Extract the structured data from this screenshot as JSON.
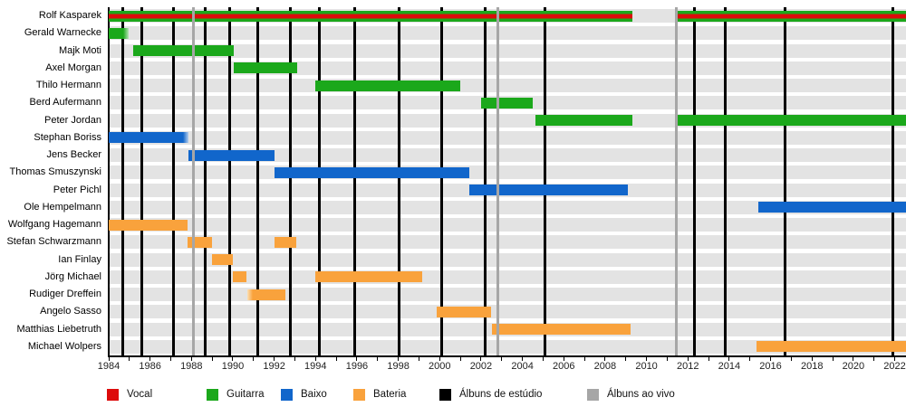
{
  "chart_data": {
    "type": "bar",
    "variant": "band-membership-timeline",
    "title": "",
    "x_axis": {
      "min": 1984,
      "max": 2022.55,
      "tick_step_years": 1,
      "label_step_years": 2,
      "year_labels": [
        "1984",
        "1986",
        "1988",
        "1990",
        "1992",
        "1994",
        "1996",
        "1998",
        "2000",
        "2002",
        "2004",
        "2006",
        "2008",
        "2010",
        "2012",
        "2014",
        "2016",
        "2018",
        "2020",
        "2022"
      ]
    },
    "members": [
      {
        "name": "Rolf Kasparek",
        "role": "vocal-guitarra",
        "segments": [
          [
            1984.0,
            2009.32
          ],
          [
            2011.45,
            2022.55
          ]
        ]
      },
      {
        "name": "Gerald Warnecke",
        "role": "guitarra",
        "segments": [
          [
            1984.0,
            1984.95
          ]
        ],
        "fade_end": true
      },
      {
        "name": "Majk Moti",
        "role": "guitarra",
        "segments": [
          [
            1985.2,
            1990.05
          ]
        ]
      },
      {
        "name": "Axel Morgan",
        "role": "guitarra",
        "segments": [
          [
            1990.05,
            1993.1
          ]
        ]
      },
      {
        "name": "Thilo Hermann",
        "role": "guitarra",
        "segments": [
          [
            1994.0,
            2001.0
          ]
        ]
      },
      {
        "name": "Berd Aufermann",
        "role": "guitarra",
        "segments": [
          [
            2002.0,
            2004.5
          ]
        ]
      },
      {
        "name": "Peter Jordan",
        "role": "guitarra",
        "segments": [
          [
            2004.65,
            2009.32
          ],
          [
            2011.45,
            2022.55
          ]
        ]
      },
      {
        "name": "Stephan Boriss",
        "role": "baixo",
        "segments": [
          [
            1984.0,
            1987.85
          ]
        ],
        "fade_end": true
      },
      {
        "name": "Jens Becker",
        "role": "baixo",
        "segments": [
          [
            1987.85,
            1992.0
          ]
        ]
      },
      {
        "name": "Thomas Smuszynski",
        "role": "baixo",
        "segments": [
          [
            1992.0,
            2001.45
          ]
        ]
      },
      {
        "name": "Peter Pichl",
        "role": "baixo",
        "segments": [
          [
            2001.45,
            2009.1
          ]
        ]
      },
      {
        "name": "Ole Hempelmann",
        "role": "baixo",
        "segments": [
          [
            2015.4,
            2022.55
          ]
        ]
      },
      {
        "name": "Wolfgang Hagemann",
        "role": "bateria",
        "segments": [
          [
            1984.0,
            1987.8
          ]
        ]
      },
      {
        "name": "Stefan Schwarzmann",
        "role": "bateria",
        "segments": [
          [
            1987.8,
            1989.0
          ],
          [
            1992.0,
            1993.05
          ]
        ]
      },
      {
        "name": "Ian Finlay",
        "role": "bateria",
        "segments": [
          [
            1989.0,
            1990.0
          ]
        ]
      },
      {
        "name": "Jörg Michael",
        "role": "bateria",
        "segments": [
          [
            1990.0,
            1990.65
          ],
          [
            1994.0,
            1999.15
          ]
        ]
      },
      {
        "name": "Rudiger Dreffein",
        "role": "bateria",
        "segments": [
          [
            1990.7,
            1992.55
          ]
        ],
        "fade_start": true
      },
      {
        "name": "Angelo Sasso",
        "role": "bateria",
        "segments": [
          [
            1999.85,
            2002.5
          ]
        ]
      },
      {
        "name": "Matthias Liebetruth",
        "role": "bateria",
        "segments": [
          [
            2002.55,
            2009.25
          ]
        ]
      },
      {
        "name": "Michael Wolpers",
        "role": "bateria",
        "segments": [
          [
            2015.3,
            2022.55
          ]
        ]
      }
    ],
    "studio_album_years": [
      1984.7,
      1985.6,
      1987.15,
      1988.65,
      1989.85,
      1991.2,
      1992.8,
      1994.2,
      1995.9,
      1998.05,
      2000.1,
      2002.2,
      2005.1,
      2012.3,
      2013.8,
      2016.7,
      2021.9
    ],
    "live_album_years": [
      1988.1,
      2002.8,
      2011.45
    ]
  },
  "colors": {
    "vocal": "#dd0b0b",
    "guitarra": "#1ba81b",
    "guitarra_fade": "#b7e4b7",
    "baixo": "#1166cb",
    "baixo_fade": "#b3cdec",
    "bateria": "#f9a23c",
    "bateria_fade": "#fce0b4",
    "studio_line": "#000000",
    "live_line": "#a6a6a6",
    "row_track": "#e3e3e3"
  },
  "legend": {
    "items": [
      {
        "label": "Vocal",
        "color_key": "vocal"
      },
      {
        "label": "Guitarra",
        "color_key": "guitarra"
      },
      {
        "label": "Baixo",
        "color_key": "baixo"
      },
      {
        "label": "Bateria",
        "color_key": "bateria"
      },
      {
        "label": "Álbuns de estúdio",
        "color_key": "studio_line"
      },
      {
        "label": "Álbuns ao vivo",
        "color_key": "live_line"
      }
    ]
  }
}
